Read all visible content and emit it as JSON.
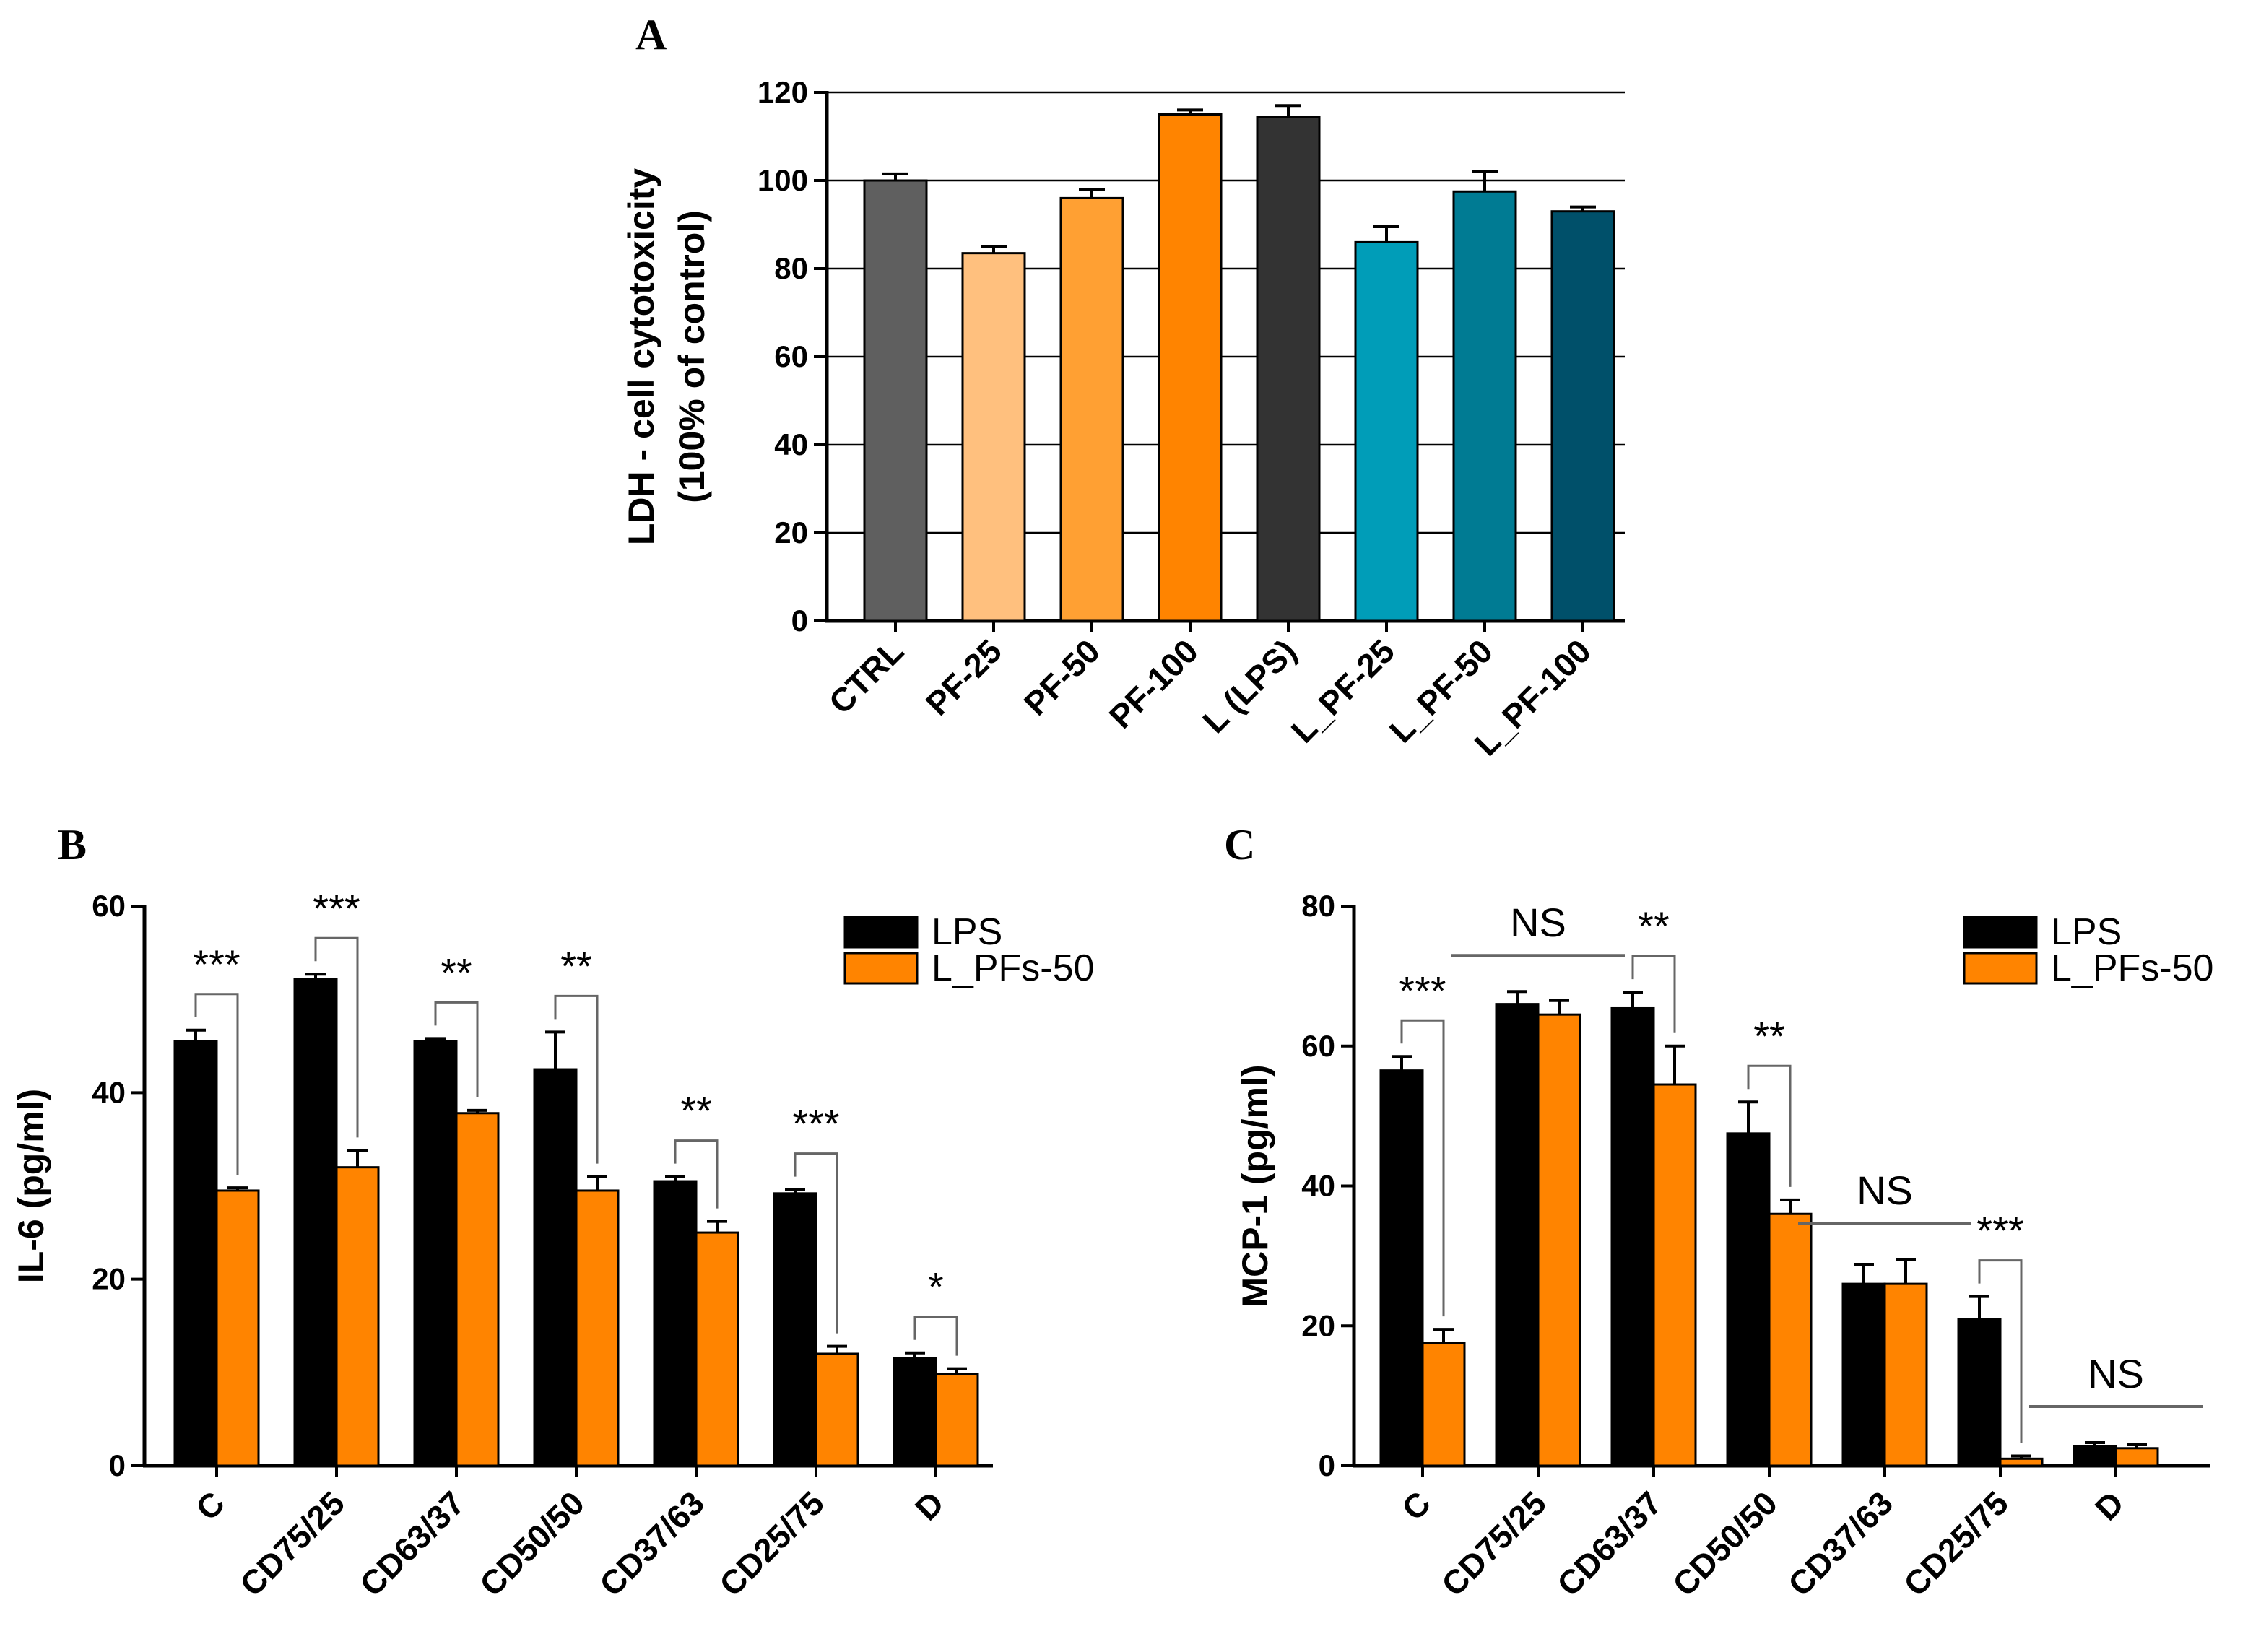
{
  "chart_data": [
    {
      "panel": "A",
      "type": "bar",
      "title": "A",
      "ylabel_line1": "LDH - cell cytotoxicity",
      "ylabel_line2": "(100% of control)",
      "ylim": [
        0,
        120
      ],
      "yticks": [
        "0",
        "20",
        "40",
        "60",
        "80",
        "100",
        "120"
      ],
      "grid": true,
      "categories": [
        "CTRL",
        "PF-25",
        "PF-50",
        "PF-100",
        "L (LPS)",
        "L_PF-25",
        "L_PF-50",
        "L_PF-100"
      ],
      "values": [
        100,
        83.5,
        96,
        115,
        114.5,
        86,
        97.5,
        93
      ],
      "errors": [
        1.5,
        1.5,
        2,
        1,
        2.5,
        3.5,
        4.5,
        1
      ],
      "colors": [
        "#5f5f5f",
        "#ffc07e",
        "#ffa033",
        "#ff8400",
        "#333333",
        "#009db8",
        "#007b93",
        "#00506a"
      ]
    },
    {
      "panel": "B",
      "type": "bar",
      "title": "B",
      "ylabel": "IL-6 (pg/ml)",
      "ylim": [
        0,
        60
      ],
      "yticks": [
        "0",
        "20",
        "40",
        "60"
      ],
      "legend_position": "top-right",
      "categories": [
        "C",
        "CD75/25",
        "CD63/37",
        "CD50/50",
        "CD37/63",
        "CD25/75",
        "D"
      ],
      "series": [
        {
          "name": "LPS",
          "color": "#000000",
          "values": [
            45.5,
            52.2,
            45.5,
            42.5,
            30.5,
            29.2,
            11.5
          ],
          "errors": [
            1.2,
            0.5,
            0.3,
            4.0,
            0.5,
            0.4,
            0.6
          ]
        },
        {
          "name": "L_PFs-50",
          "color": "#ff8400",
          "values": [
            29.5,
            32,
            37.8,
            29.5,
            25,
            12,
            9.8
          ],
          "errors": [
            0.3,
            1.8,
            0.3,
            1.5,
            1.2,
            0.8,
            0.6
          ]
        }
      ],
      "significance": [
        "***",
        "***",
        "**",
        "**",
        "**",
        "***",
        "*"
      ]
    },
    {
      "panel": "C",
      "type": "bar",
      "title": "C",
      "ylabel": "MCP-1 (pg/ml)",
      "ylim": [
        0,
        80
      ],
      "yticks": [
        "0",
        "20",
        "40",
        "60",
        "80"
      ],
      "legend_position": "top-right",
      "categories": [
        "C",
        "CD75/25",
        "CD63/37",
        "CD50/50",
        "CD37/63",
        "CD25/75",
        "D"
      ],
      "series": [
        {
          "name": "LPS",
          "color": "#000000",
          "values": [
            56.5,
            66,
            65.5,
            47.5,
            26,
            21,
            2.8
          ],
          "errors": [
            2.0,
            1.8,
            2.2,
            4.5,
            2.8,
            3.2,
            0.5
          ]
        },
        {
          "name": "L_PFs-50",
          "color": "#ff8400",
          "values": [
            17.5,
            64.5,
            54.5,
            36,
            26,
            1,
            2.5
          ],
          "errors": [
            2.0,
            2.0,
            5.5,
            2.0,
            3.5,
            0.4,
            0.5
          ]
        }
      ],
      "significance": [
        "***",
        "NS",
        "**",
        "**",
        "NS",
        "***",
        "NS"
      ]
    }
  ]
}
